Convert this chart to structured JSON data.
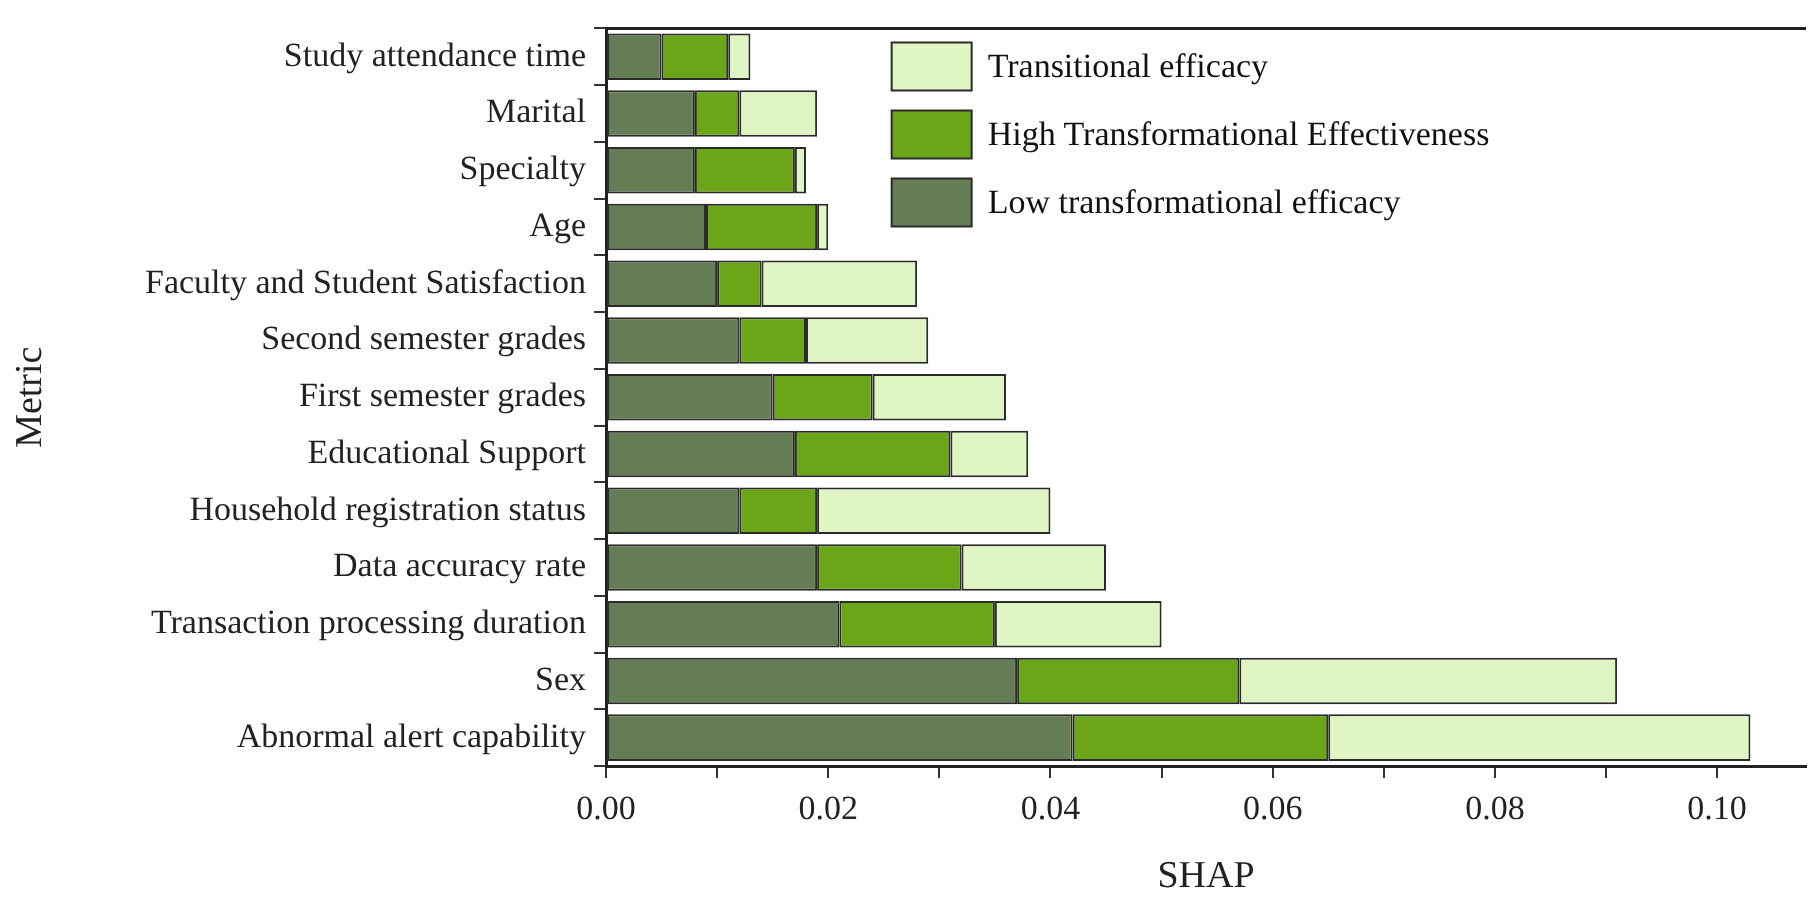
{
  "chart_data": {
    "type": "bar",
    "orientation": "horizontal",
    "stacked": true,
    "xlabel": "SHAP",
    "ylabel": "Metric",
    "categories": [
      "Study attendance time",
      "Marital",
      "Specialty",
      "Age",
      "Faculty and Student Satisfaction",
      "Second semester grades",
      "First semester grades",
      "Educational Support",
      "Household registration status",
      "Data accuracy rate",
      "Transaction processing duration",
      "Sex",
      "Abnormal alert capability"
    ],
    "series": [
      {
        "name": "Low transformational efficacy",
        "color": "#647d55",
        "values": [
          0.005,
          0.008,
          0.008,
          0.009,
          0.01,
          0.012,
          0.015,
          0.017,
          0.012,
          0.019,
          0.021,
          0.037,
          0.042
        ]
      },
      {
        "name": "High Transformational Effectiveness",
        "color": "#6aa618",
        "values": [
          0.006,
          0.004,
          0.009,
          0.01,
          0.004,
          0.006,
          0.009,
          0.014,
          0.007,
          0.013,
          0.014,
          0.02,
          0.023
        ]
      },
      {
        "name": "Transitional efficacy",
        "color": "#e0f5c4",
        "values": [
          0.002,
          0.007,
          0.001,
          0.001,
          0.014,
          0.011,
          0.012,
          0.007,
          0.021,
          0.013,
          0.015,
          0.034,
          0.038
        ]
      }
    ],
    "xlim": [
      0,
      0.108
    ],
    "xticks": [
      {
        "value": 0,
        "label": "0.00"
      },
      {
        "value": 0.01,
        "label": null
      },
      {
        "value": 0.02,
        "label": "0.02"
      },
      {
        "value": 0.03,
        "label": null
      },
      {
        "value": 0.04,
        "label": "0.04"
      },
      {
        "value": 0.05,
        "label": null
      },
      {
        "value": 0.06,
        "label": "0.06"
      },
      {
        "value": 0.07,
        "label": null
      },
      {
        "value": 0.08,
        "label": "0.08"
      },
      {
        "value": 0.09,
        "label": null
      },
      {
        "value": 0.1,
        "label": "0.10"
      }
    ],
    "grid": false,
    "legend": "top right"
  }
}
